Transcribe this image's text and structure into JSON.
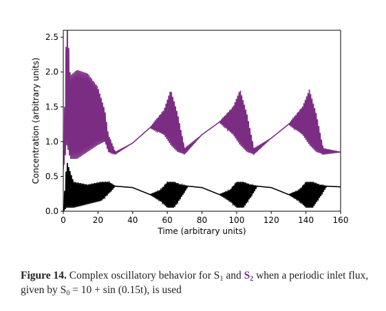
{
  "chart_data": {
    "type": "line",
    "xlabel": "Time (arbitrary units)",
    "ylabel": "Concentration (arbitrary units)",
    "xlim": [
      0,
      160
    ],
    "ylim": [
      0,
      2.6
    ],
    "x_ticks": [
      "0",
      "20",
      "40",
      "60",
      "80",
      "100",
      "120",
      "140",
      "160"
    ],
    "y_ticks": [
      "0.0",
      "0.5",
      "1.0",
      "1.5",
      "2.0",
      "2.5"
    ],
    "grid": false,
    "legend": "none",
    "series": [
      {
        "color": "#7b2c83",
        "description_points": {
          "x": [
            0,
            2,
            4,
            8,
            14,
            20,
            24,
            26,
            30,
            40,
            50,
            58,
            62,
            66,
            70,
            80,
            90,
            98,
            102,
            106,
            110,
            120,
            130,
            138,
            142,
            146,
            150,
            160
          ],
          "upper": [
            0.6,
            2.85,
            1.95,
            2.03,
            1.98,
            1.78,
            1.45,
            1.1,
            0.85,
            0.98,
            1.2,
            1.45,
            1.75,
            1.4,
            0.9,
            1.1,
            1.28,
            1.5,
            1.75,
            1.4,
            0.9,
            1.05,
            1.25,
            1.5,
            1.75,
            1.4,
            0.9,
            0.85
          ],
          "lower": [
            0.6,
            0.95,
            0.75,
            0.75,
            0.85,
            0.95,
            1.0,
            0.85,
            0.82,
            0.98,
            1.2,
            1.1,
            0.95,
            0.85,
            0.82,
            1.1,
            1.28,
            1.1,
            0.95,
            0.85,
            0.82,
            1.05,
            1.25,
            1.1,
            0.95,
            0.85,
            0.82,
            0.85
          ]
        }
      },
      {
        "color": "#000000",
        "description_points": {
          "x": [
            0,
            2,
            6,
            14,
            22,
            26,
            30,
            40,
            50,
            56,
            60,
            64,
            68,
            72,
            80,
            90,
            96,
            100,
            104,
            108,
            112,
            120,
            130,
            136,
            140,
            144,
            148,
            152,
            160
          ],
          "upper": [
            0.0,
            0.72,
            0.42,
            0.38,
            0.42,
            0.42,
            0.36,
            0.34,
            0.24,
            0.3,
            0.42,
            0.42,
            0.38,
            0.36,
            0.34,
            0.24,
            0.3,
            0.42,
            0.42,
            0.38,
            0.36,
            0.34,
            0.24,
            0.3,
            0.42,
            0.42,
            0.38,
            0.36,
            0.35
          ],
          "lower": [
            0.0,
            0.05,
            0.05,
            0.1,
            0.15,
            0.25,
            0.36,
            0.34,
            0.24,
            0.15,
            0.05,
            0.05,
            0.2,
            0.36,
            0.34,
            0.24,
            0.15,
            0.05,
            0.05,
            0.2,
            0.36,
            0.34,
            0.24,
            0.15,
            0.05,
            0.05,
            0.2,
            0.36,
            0.35
          ]
        }
      }
    ]
  },
  "caption": {
    "label": "Figure 14.",
    "text1": " Complex oscillatory behavior for S",
    "sub1": "1",
    "text2": " and ",
    "s2": "S",
    "sub2": "2",
    "text3": " when a periodic inlet flux, given by S",
    "sub0": "0",
    "text4": " = 10 + sin (0.15t), is used"
  }
}
